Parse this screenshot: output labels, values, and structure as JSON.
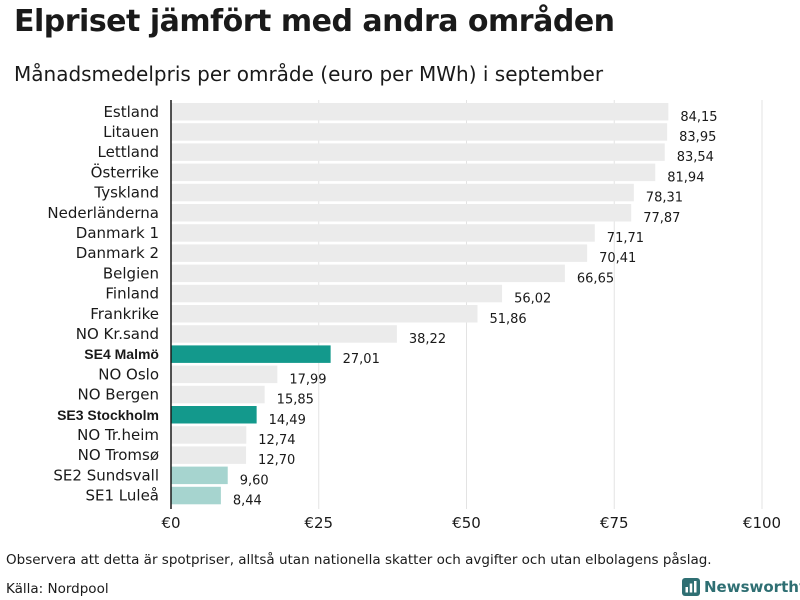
{
  "title": "Elpriset jämfört med andra områden",
  "subtitle": "Månadsmedelpris per område (euro per MWh) i september",
  "footnote": "Observera att detta är spotpriser, alltså utan nationella skatter och avgifter och utan elbolagens påslag.",
  "source": "Källa: Nordpool",
  "brand": {
    "name": "Newsworthy",
    "icon": "newsworthy-logo-icon"
  },
  "colors": {
    "default_bar": "#ebebeb",
    "highlight_bar": "#13998c",
    "secondary_bar": "#a6d4cf",
    "axis": "#1a1a1a",
    "grid": "#e3e3e3"
  },
  "chart_data": {
    "type": "bar",
    "orientation": "horizontal",
    "title": "Elpriset jämfört med andra områden",
    "subtitle": "Månadsmedelpris per område (euro per MWh) i september",
    "xlim": [
      0,
      100
    ],
    "xticks": [
      0,
      25,
      50,
      75,
      100
    ],
    "xtick_labels": [
      "€0",
      "€25",
      "€50",
      "€75",
      "€100"
    ],
    "grid": true,
    "categories": [
      "Estland",
      "Litauen",
      "Lettland",
      "Österrike",
      "Tyskland",
      "Nederländerna",
      "Danmark 1",
      "Danmark 2",
      "Belgien",
      "Finland",
      "Frankrike",
      "NO Kr.sand",
      "SE4 Malmö",
      "NO Oslo",
      "NO Bergen",
      "SE3 Stockholm",
      "NO Tr.heim",
      "NO Tromsø",
      "SE2 Sundsvall",
      "SE1 Luleå"
    ],
    "values": [
      84.15,
      83.95,
      83.54,
      81.94,
      78.31,
      77.87,
      71.71,
      70.41,
      66.65,
      56.02,
      51.86,
      38.22,
      27.01,
      17.99,
      15.85,
      14.49,
      12.74,
      12.7,
      9.6,
      8.44
    ],
    "value_labels": [
      "84,15",
      "83,95",
      "83,54",
      "81,94",
      "78,31",
      "77,87",
      "71,71",
      "70,41",
      "66,65",
      "56,02",
      "51,86",
      "38,22",
      "27,01",
      "17,99",
      "15,85",
      "14,49",
      "12,74",
      "12,70",
      "9,60",
      "8,44"
    ],
    "highlight": [
      "default",
      "default",
      "default",
      "default",
      "default",
      "default",
      "default",
      "default",
      "default",
      "default",
      "default",
      "default",
      "highlight",
      "default",
      "default",
      "highlight",
      "default",
      "default",
      "secondary",
      "secondary"
    ]
  }
}
